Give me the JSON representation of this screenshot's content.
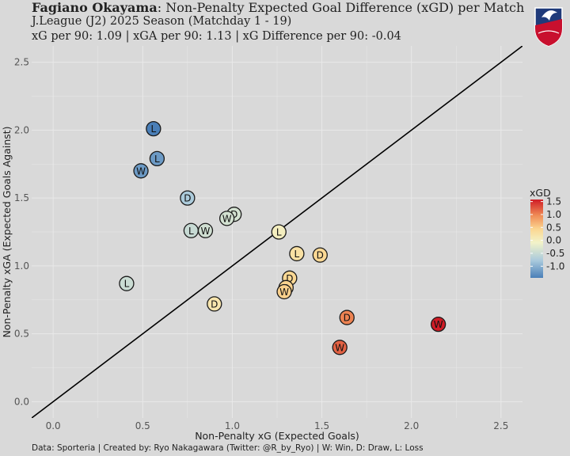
{
  "header": {
    "team": "Fagiano Okayama",
    "title_rest": ": Non-Penalty Expected Goal Difference (xGD) per Match",
    "subtitle": "J.League (J2) 2025 Season (Matchday 1 - 19)",
    "stats": "xG per 90: 1.09 | xGA per 90: 1.13 | xG Difference per 90: -0.04"
  },
  "caption": "Data: Sporteria | Created by: Ryo Nakagawara (Twitter: @R_by_Ryo) | W: Win, D: Draw, L: Loss",
  "colors": {
    "background": "#d9d9d9",
    "grid": "#e9e9e9",
    "line": "#000000"
  },
  "chart_data": {
    "type": "scatter",
    "xlabel": "Non-Penalty xG (Expected Goals)",
    "ylabel": "Non-Penalty xGA (Expected Goals Against)",
    "xlim": [
      -0.12,
      2.62
    ],
    "ylim": [
      -0.12,
      2.62
    ],
    "xticks": [
      0.0,
      0.5,
      1.0,
      1.5,
      2.0,
      2.5
    ],
    "yticks": [
      0.0,
      0.5,
      1.0,
      1.5,
      2.0,
      2.5
    ],
    "xtick_labels": [
      "0.0",
      "0.5",
      "1.0",
      "1.5",
      "2.0",
      "2.5"
    ],
    "ytick_labels": [
      "0.0",
      "0.5",
      "1.0",
      "1.5",
      "2.0",
      "2.5"
    ],
    "reference_line": "y = x",
    "grid": true,
    "legend": {
      "title": "xGD",
      "position": "right",
      "ticks": [
        1.5,
        1.0,
        0.5,
        0.0,
        -0.5,
        -1.0
      ],
      "tick_labels": [
        "1.5",
        "1.0",
        "0.5",
        "0.0",
        "-0.5",
        "-1.0"
      ],
      "range": [
        -1.45,
        1.58
      ]
    },
    "points": [
      {
        "x": 0.56,
        "y": 2.01,
        "result": "L"
      },
      {
        "x": 0.58,
        "y": 1.79,
        "result": "L"
      },
      {
        "x": 0.49,
        "y": 1.7,
        "result": "W"
      },
      {
        "x": 0.75,
        "y": 1.5,
        "result": "D"
      },
      {
        "x": 1.01,
        "y": 1.38,
        "result": "D"
      },
      {
        "x": 0.97,
        "y": 1.35,
        "result": "W"
      },
      {
        "x": 0.77,
        "y": 1.26,
        "result": "L"
      },
      {
        "x": 0.85,
        "y": 1.26,
        "result": "W"
      },
      {
        "x": 1.26,
        "y": 1.25,
        "result": "L"
      },
      {
        "x": 1.36,
        "y": 1.09,
        "result": "L"
      },
      {
        "x": 1.49,
        "y": 1.08,
        "result": "D"
      },
      {
        "x": 0.41,
        "y": 0.87,
        "result": "L"
      },
      {
        "x": 1.32,
        "y": 0.91,
        "result": "D"
      },
      {
        "x": 1.3,
        "y": 0.84,
        "result": "D"
      },
      {
        "x": 1.29,
        "y": 0.81,
        "result": "W"
      },
      {
        "x": 0.9,
        "y": 0.72,
        "result": "D"
      },
      {
        "x": 1.64,
        "y": 0.62,
        "result": "D"
      },
      {
        "x": 2.15,
        "y": 0.57,
        "result": "W"
      },
      {
        "x": 1.6,
        "y": 0.4,
        "result": "W"
      }
    ]
  }
}
